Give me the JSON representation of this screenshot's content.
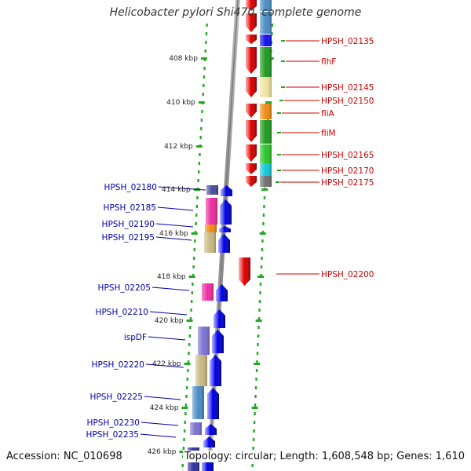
{
  "title": "Helicobacter pylori Shi470, complete genome",
  "footer": {
    "accession": "Accession: NC_010698",
    "summary": "Topology: circular; Length: 1,608,548 bp; Genes: 1,610"
  },
  "colors": {
    "strand_plus": "#e00000",
    "strand_minus": "#0000e0",
    "label_plus": "#cc0000",
    "label_minus": "#0000aa",
    "backbone": "#9a9a9a",
    "ruler": "#22aa22"
  },
  "ruler_labels": [
    "408 kbp",
    "410 kbp",
    "412 kbp",
    "414 kbp",
    "416 kbp",
    "418 kbp",
    "420 kbp",
    "422 kbp",
    "424 kbp",
    "426 kbp"
  ],
  "genes_right": [
    "HPSH_02135",
    "flhF",
    "HPSH_02145",
    "HPSH_02150",
    "fliA",
    "fliM",
    "HPSH_02165",
    "HPSH_02170",
    "HPSH_02175",
    "HPSH_02200"
  ],
  "genes_left": [
    "HPSH_02180",
    "HPSH_02185",
    "HPSH_02190",
    "HPSH_02195",
    "HPSH_02205",
    "HPSH_02210",
    "ispDF",
    "HPSH_02220",
    "HPSH_02225",
    "HPSH_02230",
    "HPSH_02235"
  ]
}
